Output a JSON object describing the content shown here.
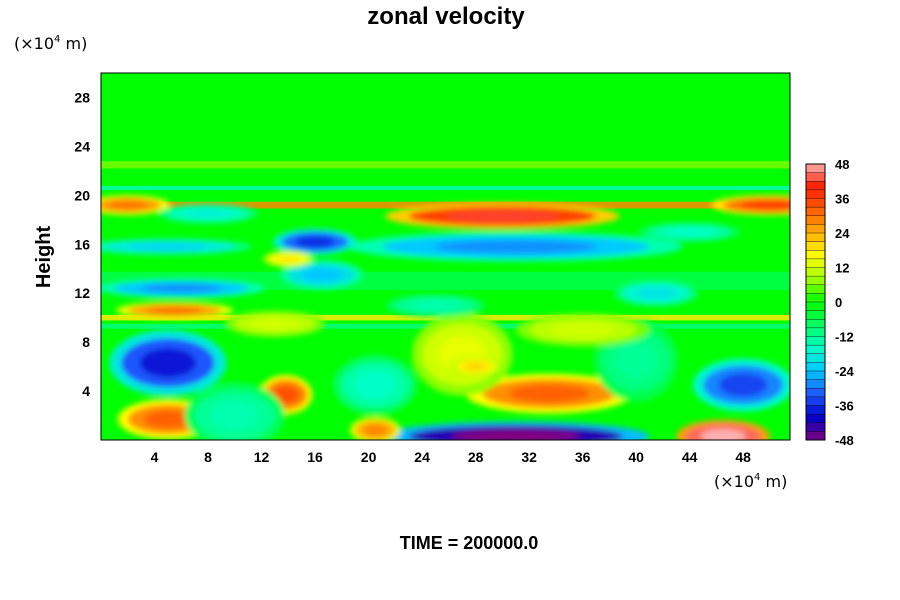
{
  "chart_data": {
    "type": "heatmap",
    "title": "zonal velocity",
    "xlabel": "",
    "ylabel": "Height",
    "x_unit": {
      "prefix": "(×10",
      "exp": "4",
      "suffix": " m)"
    },
    "y_unit": {
      "prefix": "(×10",
      "exp": "4",
      "suffix": " m)"
    },
    "xlim": [
      0,
      51.5
    ],
    "ylim": [
      0,
      30
    ],
    "x_ticks": [
      "4",
      "8",
      "12",
      "16",
      "20",
      "24",
      "28",
      "32",
      "36",
      "40",
      "44",
      "48"
    ],
    "y_ticks": [
      "4",
      "8",
      "12",
      "16",
      "20",
      "24",
      "28"
    ],
    "colorbar": {
      "range": [
        -48,
        48
      ],
      "ticks": [
        "48",
        "36",
        "24",
        "12",
        "0",
        "-12",
        "-24",
        "-36",
        "-48"
      ]
    },
    "colormap": [
      "#800080",
      "#0000c8",
      "#1e5aff",
      "#00c8ff",
      "#00ffc8",
      "#00ff64",
      "#00ff00",
      "#a0ff00",
      "#ffff00",
      "#ffb000",
      "#ff6000",
      "#ff1e00",
      "#ffb0b0"
    ],
    "background_value": 0,
    "bands": [
      {
        "y": 19.2,
        "width": 0.55,
        "value": 28
      },
      {
        "y": 20.6,
        "width": 0.35,
        "value": -14
      },
      {
        "y": 10.0,
        "width": 0.45,
        "value": 18
      },
      {
        "y": 9.3,
        "width": 0.4,
        "value": -10
      },
      {
        "y": 22.5,
        "width": 0.6,
        "value": 6
      },
      {
        "y": 13.0,
        "width": 1.5,
        "value": -6
      }
    ],
    "features": [
      {
        "x": 30,
        "y": 18.3,
        "rx": 7,
        "ry": 0.8,
        "value": 42
      },
      {
        "x": 50,
        "y": 19.2,
        "rx": 3.5,
        "ry": 0.6,
        "value": 36
      },
      {
        "x": 2,
        "y": 19.2,
        "rx": 2.5,
        "ry": 0.6,
        "value": 30
      },
      {
        "x": 5.5,
        "y": 10.6,
        "rx": 3.5,
        "ry": 0.5,
        "value": 30
      },
      {
        "x": 31,
        "y": 15.8,
        "rx": 10,
        "ry": 0.9,
        "value": -28
      },
      {
        "x": 16,
        "y": 16.2,
        "rx": 2.5,
        "ry": 0.8,
        "value": -36
      },
      {
        "x": 5,
        "y": 15.8,
        "rx": 5,
        "ry": 0.5,
        "value": -22
      },
      {
        "x": 6,
        "y": 12.4,
        "rx": 5,
        "ry": 0.6,
        "value": -28
      },
      {
        "x": 16.5,
        "y": 13.5,
        "rx": 2.5,
        "ry": 0.9,
        "value": -24
      },
      {
        "x": 5,
        "y": 6.3,
        "rx": 3.5,
        "ry": 2.0,
        "value": -38
      },
      {
        "x": 48,
        "y": 4.5,
        "rx": 3,
        "ry": 1.6,
        "value": -34
      },
      {
        "x": 13.8,
        "y": 3.7,
        "rx": 1.6,
        "ry": 1.2,
        "value": 34
      },
      {
        "x": 5,
        "y": 1.7,
        "rx": 3,
        "ry": 1.2,
        "value": 32
      },
      {
        "x": 33.5,
        "y": 3.8,
        "rx": 5,
        "ry": 1.2,
        "value": 32
      },
      {
        "x": 31,
        "y": 0.3,
        "rx": 8,
        "ry": 0.9,
        "value": -50
      },
      {
        "x": 46.5,
        "y": 0.3,
        "rx": 2.8,
        "ry": 1.0,
        "value": 52
      },
      {
        "x": 20.5,
        "y": 0.8,
        "rx": 1.5,
        "ry": 0.8,
        "value": 28
      },
      {
        "x": 20.5,
        "y": 4.5,
        "rx": 2.5,
        "ry": 1.8,
        "value": -16
      },
      {
        "x": 10,
        "y": 2.0,
        "rx": 3,
        "ry": 2.0,
        "value": -14
      },
      {
        "x": 27,
        "y": 7.0,
        "rx": 3,
        "ry": 2.5,
        "value": 14
      },
      {
        "x": 40,
        "y": 6.5,
        "rx": 2.5,
        "ry": 2.5,
        "value": -12
      },
      {
        "x": 28,
        "y": 6.0,
        "rx": 1.5,
        "ry": 0.6,
        "value": 20
      },
      {
        "x": 41.5,
        "y": 12.0,
        "rx": 2.5,
        "ry": 0.8,
        "value": -20
      },
      {
        "x": 36,
        "y": 9.0,
        "rx": 4,
        "ry": 1.0,
        "value": 12
      },
      {
        "x": 13,
        "y": 9.5,
        "rx": 3,
        "ry": 0.8,
        "value": 12
      },
      {
        "x": 25,
        "y": 11.0,
        "rx": 3,
        "ry": 0.7,
        "value": -14
      },
      {
        "x": 8,
        "y": 18.5,
        "rx": 3,
        "ry": 0.6,
        "value": -18
      },
      {
        "x": 44,
        "y": 17.0,
        "rx": 3,
        "ry": 0.6,
        "value": -16
      },
      {
        "x": 14,
        "y": 14.8,
        "rx": 1.5,
        "ry": 0.5,
        "value": 18
      }
    ],
    "time_label": "TIME = 200000.0"
  }
}
